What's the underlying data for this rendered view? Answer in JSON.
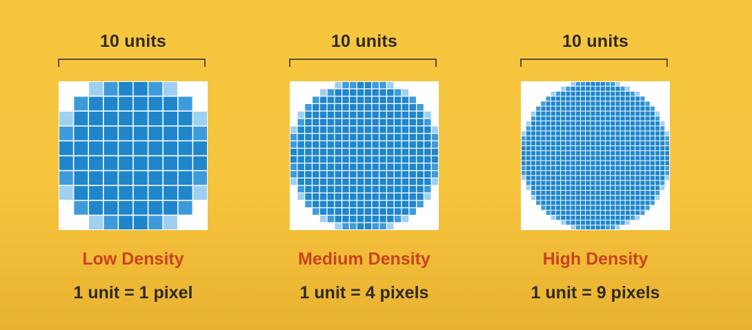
{
  "colors": {
    "background": "#f6c43d",
    "grid_dark": "#1f86cc",
    "grid_mid": "#3d9bdc",
    "grid_light": "#9ed0f2",
    "grid_empty": "#ffffff",
    "title_color": "#c9421f",
    "text_color": "#2e2a22"
  },
  "panels": [
    {
      "units_label": "10 units",
      "density_title": "Low Density",
      "ratio": "1 unit = 1 pixel",
      "grid_cells": 10
    },
    {
      "units_label": "10 units",
      "density_title": "Medium Density",
      "ratio": "1 unit = 4 pixels",
      "grid_cells": 20
    },
    {
      "units_label": "10 units",
      "density_title": "High Density",
      "ratio": "1 unit = 9 pixels",
      "grid_cells": 30
    }
  ]
}
